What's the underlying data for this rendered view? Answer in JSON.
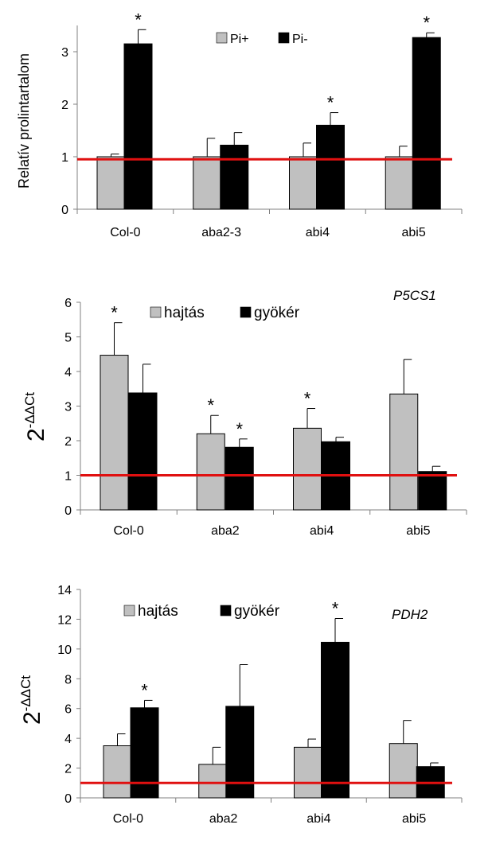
{
  "chart_data": [
    {
      "type": "bar",
      "ylabel": "Relatív prolintartalom",
      "annotation": "",
      "categories": [
        "Col-0",
        "aba2-3",
        "abi4",
        "abi5"
      ],
      "ylim": [
        0,
        3.5
      ],
      "yticks": [
        0,
        1,
        2,
        3
      ],
      "reference_line": 0.95,
      "legend_position": "top-center",
      "series": [
        {
          "name": "Pi+",
          "color": "#c0c0c0",
          "values": [
            1.0,
            1.0,
            1.0,
            1.0
          ],
          "errors": [
            0.05,
            0.35,
            0.26,
            0.2
          ]
        },
        {
          "name": "Pi-",
          "color": "#000000",
          "values": [
            3.15,
            1.22,
            1.6,
            3.27
          ],
          "errors": [
            0.27,
            0.24,
            0.24,
            0.09
          ]
        }
      ],
      "significance": [
        {
          "category": 0,
          "series": 1,
          "mark": "*"
        },
        {
          "category": 2,
          "series": 1,
          "mark": "*"
        },
        {
          "category": 3,
          "series": 1,
          "mark": "*"
        }
      ]
    },
    {
      "type": "bar",
      "ylabel": "2-ΔΔCt",
      "annotation": "P5CS1",
      "categories": [
        "Col-0",
        "aba2",
        "abi4",
        "abi5"
      ],
      "ylim": [
        0,
        6
      ],
      "yticks": [
        0,
        1,
        2,
        3,
        4,
        5,
        6
      ],
      "reference_line": 1.0,
      "legend_position": "top-center",
      "series": [
        {
          "name": "hajtás",
          "color": "#c0c0c0",
          "values": [
            4.47,
            2.2,
            2.36,
            3.35
          ],
          "errors": [
            0.94,
            0.53,
            0.57,
            1.0
          ]
        },
        {
          "name": "gyökér",
          "color": "#000000",
          "values": [
            3.38,
            1.81,
            1.97,
            1.11
          ],
          "errors": [
            0.83,
            0.24,
            0.13,
            0.15
          ]
        }
      ],
      "significance": [
        {
          "category": 0,
          "series": 0,
          "mark": "*"
        },
        {
          "category": 1,
          "series": 0,
          "mark": "*"
        },
        {
          "category": 1,
          "series": 1,
          "mark": "*"
        },
        {
          "category": 2,
          "series": 0,
          "mark": "*"
        }
      ]
    },
    {
      "type": "bar",
      "ylabel": "2-ΔΔCt",
      "annotation": "PDH2",
      "categories": [
        "Col-0",
        "aba2",
        "abi4",
        "abi5"
      ],
      "ylim": [
        0,
        14
      ],
      "yticks": [
        0,
        2,
        4,
        6,
        8,
        10,
        12,
        14
      ],
      "reference_line": 1.0,
      "legend_position": "top-left",
      "series": [
        {
          "name": "hajtás",
          "color": "#c0c0c0",
          "values": [
            3.5,
            2.25,
            3.4,
            3.65
          ],
          "errors": [
            0.8,
            1.15,
            0.55,
            1.55
          ]
        },
        {
          "name": "gyökér",
          "color": "#000000",
          "values": [
            6.05,
            6.15,
            10.45,
            2.1
          ],
          "errors": [
            0.5,
            2.8,
            1.6,
            0.25
          ]
        }
      ],
      "significance": [
        {
          "category": 0,
          "series": 1,
          "mark": "*"
        },
        {
          "category": 2,
          "series": 1,
          "mark": "*"
        }
      ]
    }
  ],
  "colors": {
    "reference_line": "#e01010",
    "axis": "#808080",
    "bar_outline": "#000000"
  }
}
